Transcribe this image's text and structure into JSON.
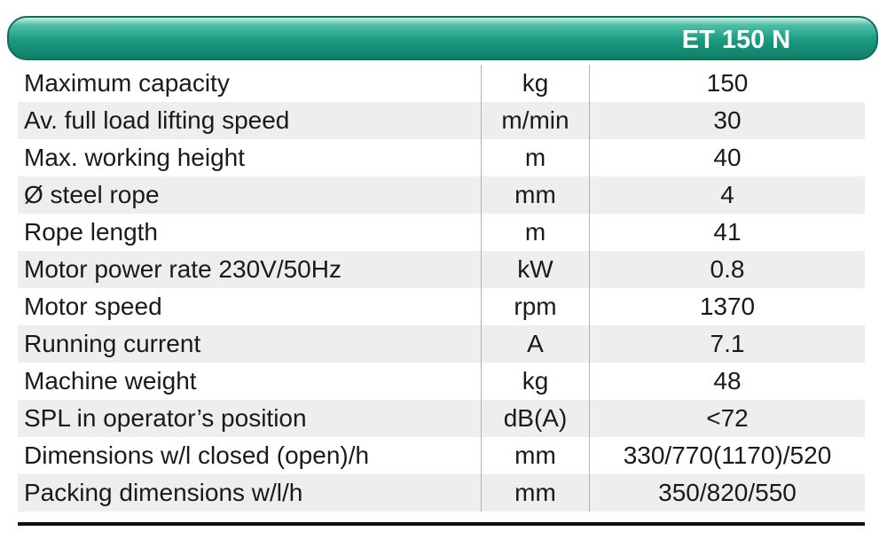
{
  "header": {
    "title": "ET 150 N"
  },
  "table": {
    "rows": [
      [
        "Maximum capacity",
        "kg",
        "150"
      ],
      [
        "Av. full load lifting speed",
        "m/min",
        "30"
      ],
      [
        "Max. working height",
        "m",
        "40"
      ],
      [
        "Ø steel rope",
        "mm",
        "4"
      ],
      [
        "Rope length",
        "m",
        "41"
      ],
      [
        "Motor power rate 230V/50Hz",
        "kW",
        "0.8"
      ],
      [
        "Motor speed",
        "rpm",
        "1370"
      ],
      [
        "Running current",
        "A",
        "7.1"
      ],
      [
        "Machine weight",
        "kg",
        "48"
      ],
      [
        "SPL in operator’s position",
        "dB(A)",
        "<72"
      ],
      [
        "Dimensions w/l closed (open)/h",
        "mm",
        "330/770(1170)/520"
      ],
      [
        "Packing dimensions w/l/h",
        "mm",
        "350/820/550"
      ]
    ]
  }
}
